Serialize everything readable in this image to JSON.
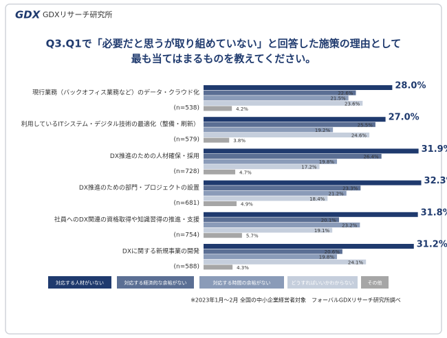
{
  "brand": {
    "logo": "GDX",
    "name": "GDXリサーチ研究所"
  },
  "chart_data": {
    "type": "bar",
    "orientation": "horizontal",
    "title": [
      "Q3.Q1で「必要だと思うが取り組めていない」と回答した施策の理由として",
      "最も当てはまるものを教えてください。"
    ],
    "categories": [
      "現行業務（バックオフィス業務など）のデータ・クラウド化",
      "利用しているITシステム・デジタル技術の最適化（整備・刷新）",
      "DX推進のための人材確保・採用",
      "DX推進のための部門・プロジェクトの設置",
      "社員へのDX関連の資格取得や知識習得の推進・支援",
      "DXに関する新規事業の開発"
    ],
    "sample_sizes": [
      "(n=538)",
      "(n=579)",
      "(n=728)",
      "(n=681)",
      "(n=754)",
      "(n=588)"
    ],
    "series": [
      {
        "name": "対応する人材がいない",
        "color": "#1f3a6e",
        "values": [
          28.0,
          27.0,
          31.9,
          32.3,
          31.8,
          31.2
        ],
        "value_labels": [
          "28.0%",
          "27.0%",
          "31.9%",
          "32.3%",
          "31.8%",
          "31.2%"
        ]
      },
      {
        "name": "対応する経済的な余裕がない",
        "color": "#5b6f94",
        "values": [
          22.6,
          25.5,
          26.4,
          23.3,
          20.1,
          20.6
        ],
        "value_labels": [
          "22.6%",
          "25.5%",
          "26.4%",
          "23.3%",
          "20.1%",
          "20.6%"
        ]
      },
      {
        "name": "対応する時間の余裕がない",
        "color": "#8a9bb8",
        "values": [
          21.5,
          19.2,
          19.8,
          21.2,
          23.2,
          19.8
        ],
        "value_labels": [
          "21.5%",
          "19.2%",
          "19.8%",
          "21.2%",
          "23.2%",
          "19.8%"
        ]
      },
      {
        "name": "どうすればいいかわからない",
        "color": "#c5cedc",
        "values": [
          23.6,
          24.6,
          17.2,
          18.4,
          19.1,
          24.1
        ],
        "value_labels": [
          "23.6%",
          "24.6%",
          "17.2%",
          "18.4%",
          "19.1%",
          "24.1%"
        ]
      },
      {
        "name": "その他",
        "color": "#a6a6a6",
        "values": [
          4.2,
          3.8,
          4.7,
          4.9,
          5.7,
          4.3
        ],
        "value_labels": [
          "4.2%",
          "3.8%",
          "4.7%",
          "4.9%",
          "5.7%",
          "4.3%"
        ]
      }
    ],
    "footnote": "※2023年1月～2月 全国の中小企業経営者対象　フォーバルGDXリサーチ研究所調べ"
  }
}
